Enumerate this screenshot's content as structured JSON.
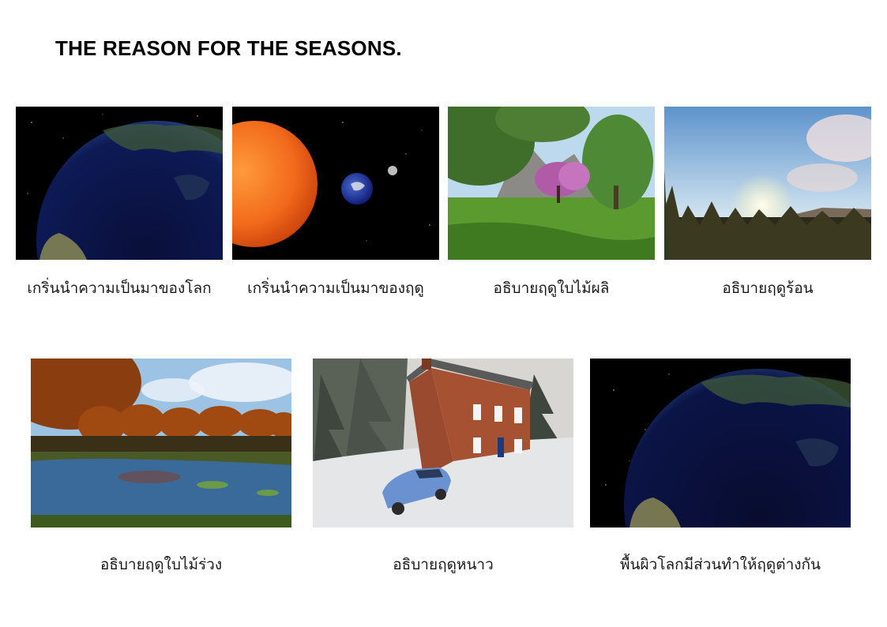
{
  "title": "THE REASON FOR THE SEASONS.",
  "cards": [
    {
      "caption": "เกริ่นนำความเป็นมาของโลก",
      "scene": "earth-icon"
    },
    {
      "caption": "เกริ่นนำความเป็นมาของฤดู",
      "scene": "sun-earth-moon-icon"
    },
    {
      "caption": "อธิบายฤดูใบไม้ผลิ",
      "scene": "spring-trees-icon"
    },
    {
      "caption": "อธิบายฤดูร้อน",
      "scene": "summer-sunset-icon"
    },
    {
      "caption": "อธิบายฤดูใบไม้ร่วง",
      "scene": "autumn-pond-icon"
    },
    {
      "caption": "อธิบายฤดูหนาว",
      "scene": "winter-house-icon"
    },
    {
      "caption": "พื้นผิวโลกมีส่วนทำให้ฤดูต่างกัน",
      "scene": "earth-surface-icon"
    }
  ],
  "colors": {
    "space": "#000000",
    "earth_dark": "#0b1446",
    "sun": "#f26a1b",
    "grass": "#4e8a2a",
    "sky": "#9cc6ea",
    "autumn": "#a04a12",
    "snow": "#e4e6e8"
  }
}
